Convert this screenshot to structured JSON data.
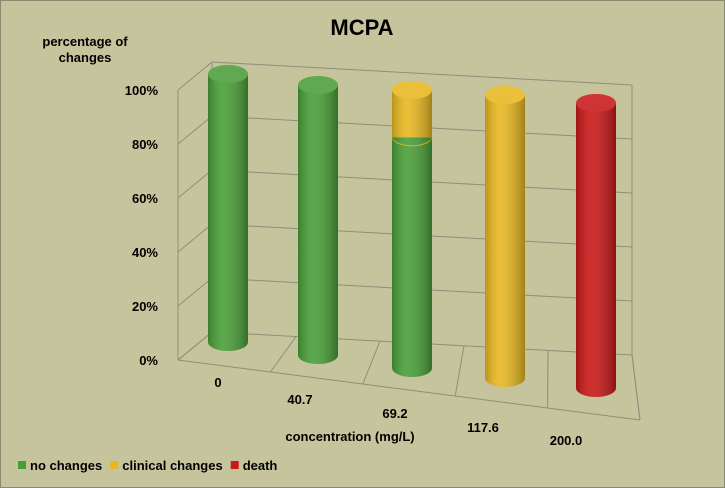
{
  "chart_data": {
    "type": "bar",
    "style": "3d-stacked-cylinder",
    "title": "MCPA",
    "ylabel": "percentage of changes",
    "xlabel": "concentration (mg/L)",
    "categories": [
      "0",
      "40.7",
      "69.2",
      "117.6",
      "200.0"
    ],
    "yticks": [
      "0%",
      "20%",
      "40%",
      "60%",
      "80%",
      "100%"
    ],
    "ylim": [
      0,
      100
    ],
    "grid": true,
    "legend_position": "bottom-left",
    "series": [
      {
        "name": "no changes",
        "color": "#4a9e38",
        "values": [
          100,
          100,
          83,
          0,
          0
        ]
      },
      {
        "name": "clinical changes",
        "color": "#e8b820",
        "values": [
          0,
          0,
          17,
          100,
          0
        ]
      },
      {
        "name": "death",
        "color": "#c81818",
        "values": [
          0,
          0,
          0,
          0,
          100
        ]
      }
    ]
  }
}
